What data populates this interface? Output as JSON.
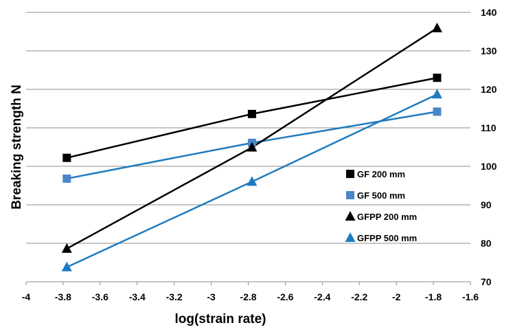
{
  "chart_data": {
    "type": "line",
    "title": "",
    "xlabel": "log(strain rate)",
    "ylabel": "Breaking strength N",
    "xlim": [
      -4,
      -1.6
    ],
    "ylim": [
      70,
      140
    ],
    "x_ticks": [
      -4,
      -3.8,
      -3.6,
      -3.4,
      -3.2,
      -3,
      -2.8,
      -2.6,
      -2.4,
      -2.2,
      -2,
      -1.8,
      -1.6
    ],
    "x_tick_labels": [
      "-4",
      "-3.8",
      "-3.6",
      "-3.4",
      "-3.2",
      "-3",
      "-2.8",
      "-2.6",
      "-2.4",
      "-2.2",
      "-2",
      "-1.8",
      "-1.6"
    ],
    "y_ticks": [
      70,
      80,
      90,
      100,
      110,
      120,
      130,
      140
    ],
    "y_tick_labels": [
      "70",
      "80",
      "90",
      "100",
      "110",
      "120",
      "130",
      "140"
    ],
    "y_axis_side": "right",
    "grid": "horizontal",
    "legend_position": "center-right",
    "series": [
      {
        "name": "GF 200 mm",
        "color": "#000000",
        "marker": "square",
        "x": [
          -3.78,
          -2.78,
          -1.78
        ],
        "y": [
          102.2,
          113.6,
          123.0
        ]
      },
      {
        "name": "GF 500 mm",
        "color": "#4a86c8",
        "line_color": "#1f7bbf",
        "marker": "square",
        "x": [
          -3.78,
          -2.78,
          -1.78
        ],
        "y": [
          96.8,
          106.1,
          114.2
        ]
      },
      {
        "name": "GFPP 200 mm",
        "color": "#000000",
        "marker": "triangle",
        "x": [
          -3.78,
          -2.78,
          -1.78
        ],
        "y": [
          78.6,
          104.9,
          135.9
        ]
      },
      {
        "name": "GFPP 500 mm",
        "color": "#1f7bbf",
        "marker": "triangle",
        "x": [
          -3.78,
          -2.78,
          -1.78
        ],
        "y": [
          73.8,
          96.0,
          118.7
        ]
      }
    ]
  }
}
